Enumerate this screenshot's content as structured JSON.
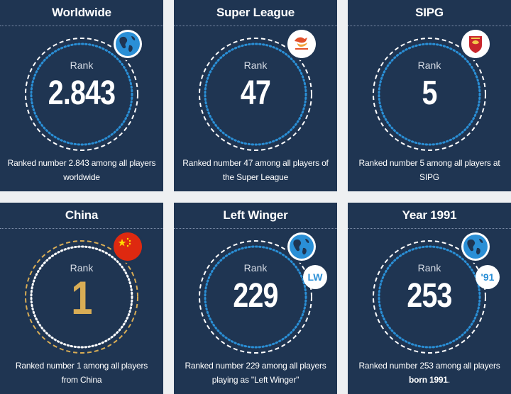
{
  "cards": [
    {
      "title": "Worldwide",
      "rank_label": "Rank",
      "rank": "2.843",
      "caption": "Ranked number 2.843 among all players worldwide",
      "badge": "globe-icon"
    },
    {
      "title": "Super League",
      "rank_label": "Rank",
      "rank": "47",
      "caption": "Ranked number 47 among all players of the Super League",
      "badge": "super-league-logo"
    },
    {
      "title": "SIPG",
      "rank_label": "Rank",
      "rank": "5",
      "caption": "Ranked number 5 among all players at SIPG",
      "badge": "sipg-crest-icon"
    },
    {
      "title": "China",
      "rank_label": "Rank",
      "rank": "1",
      "caption": "Ranked number 1 among all players from China",
      "badge": "china-flag-icon"
    },
    {
      "title": "Left Winger",
      "rank_label": "Rank",
      "rank": "229",
      "caption": "Ranked number 229 among all players playing as \"Left Winger\"",
      "badge": "globe-icon",
      "tag": "LW"
    },
    {
      "title": "Year 1991",
      "rank_label": "Rank",
      "rank": "253",
      "caption_prefix": "Ranked number 253 among all players ",
      "caption_bold": "born 1991",
      "caption_suffix": ".",
      "badge": "globe-icon",
      "tag": "'91"
    }
  ],
  "colors": {
    "card_bg": "#1f3552",
    "ring_dots_blue": "#2a8fd6",
    "ring_dots_white": "#ffffff",
    "gold": "#d9ad55",
    "page_bg": "#eef0f2"
  }
}
